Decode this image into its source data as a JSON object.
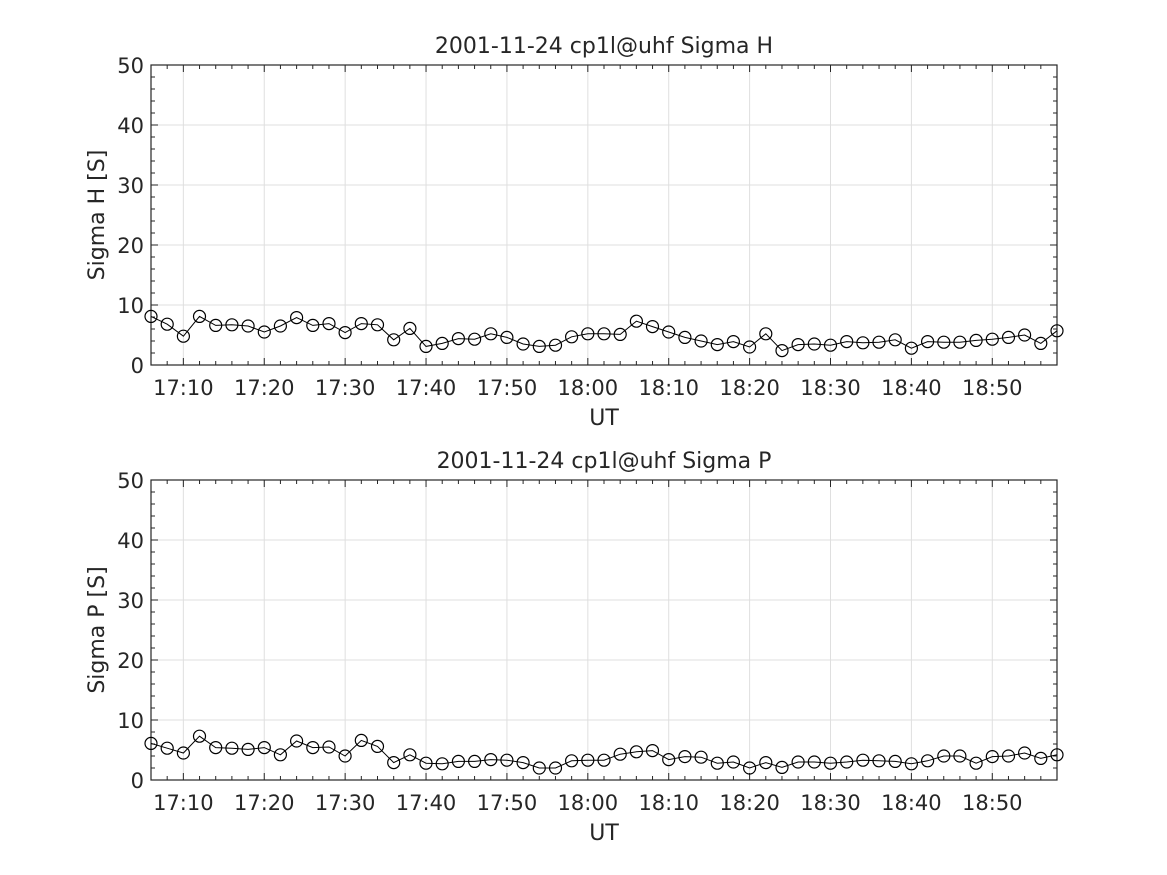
{
  "chart_data": [
    {
      "type": "line",
      "title": "2001-11-24  cp1l@uhf Sigma H",
      "xlabel": "UT",
      "ylabel": "Sigma H [S]",
      "xlim": [
        "17:06",
        "18:58"
      ],
      "ylim": [
        0,
        50
      ],
      "yticks": [
        "0",
        "10",
        "20",
        "30",
        "40",
        "50"
      ],
      "xticks": [
        "17:10",
        "17:20",
        "17:30",
        "17:40",
        "17:50",
        "18:00",
        "18:10",
        "18:20",
        "18:30",
        "18:40",
        "18:50"
      ],
      "grid": true,
      "marker": "circle",
      "series": [
        {
          "x": [
            "17:06",
            "17:08",
            "17:10",
            "17:12",
            "17:14",
            "17:16",
            "17:18",
            "17:20",
            "17:22",
            "17:24",
            "17:26",
            "17:28",
            "17:30",
            "17:32",
            "17:34",
            "17:36",
            "17:38",
            "17:40",
            "17:42",
            "17:44",
            "17:46",
            "17:48",
            "17:50",
            "17:52",
            "17:54",
            "17:56",
            "17:58",
            "18:00",
            "18:02",
            "18:04",
            "18:06",
            "18:08",
            "18:10",
            "18:12",
            "18:14",
            "18:16",
            "18:18",
            "18:20",
            "18:22",
            "18:24",
            "18:26",
            "18:28",
            "18:30",
            "18:32",
            "18:34",
            "18:36",
            "18:38",
            "18:40",
            "18:42",
            "18:44",
            "18:46",
            "18:48",
            "18:50",
            "18:52",
            "18:54",
            "18:56",
            "18:58"
          ],
          "values": [
            8.1,
            6.8,
            4.8,
            8.1,
            6.6,
            6.7,
            6.5,
            5.5,
            6.5,
            7.9,
            6.6,
            6.9,
            5.4,
            6.9,
            6.7,
            4.2,
            6.1,
            3.1,
            3.6,
            4.4,
            4.3,
            5.2,
            4.6,
            3.5,
            3.1,
            3.3,
            4.7,
            5.2,
            5.2,
            5.1,
            7.3,
            6.4,
            5.5,
            4.6,
            4.0,
            3.4,
            3.9,
            3.0,
            5.2,
            2.4,
            3.4,
            3.5,
            3.3,
            3.9,
            3.7,
            3.8,
            4.2,
            2.8,
            3.9,
            3.8,
            3.8,
            4.1,
            4.3,
            4.6,
            5.0,
            3.6,
            5.7
          ]
        }
      ]
    },
    {
      "type": "line",
      "title": "2001-11-24  cp1l@uhf Sigma P",
      "xlabel": "UT",
      "ylabel": "Sigma P [S]",
      "xlim": [
        "17:06",
        "18:58"
      ],
      "ylim": [
        0,
        50
      ],
      "yticks": [
        "0",
        "10",
        "20",
        "30",
        "40",
        "50"
      ],
      "xticks": [
        "17:10",
        "17:20",
        "17:30",
        "17:40",
        "17:50",
        "18:00",
        "18:10",
        "18:20",
        "18:30",
        "18:40",
        "18:50"
      ],
      "grid": true,
      "marker": "circle",
      "series": [
        {
          "x": [
            "17:06",
            "17:08",
            "17:10",
            "17:12",
            "17:14",
            "17:16",
            "17:18",
            "17:20",
            "17:22",
            "17:24",
            "17:26",
            "17:28",
            "17:30",
            "17:32",
            "17:34",
            "17:36",
            "17:38",
            "17:40",
            "17:42",
            "17:44",
            "17:46",
            "17:48",
            "17:50",
            "17:52",
            "17:54",
            "17:56",
            "17:58",
            "18:00",
            "18:02",
            "18:04",
            "18:06",
            "18:08",
            "18:10",
            "18:12",
            "18:14",
            "18:16",
            "18:18",
            "18:20",
            "18:22",
            "18:24",
            "18:26",
            "18:28",
            "18:30",
            "18:32",
            "18:34",
            "18:36",
            "18:38",
            "18:40",
            "18:42",
            "18:44",
            "18:46",
            "18:48",
            "18:50",
            "18:52",
            "18:54",
            "18:56",
            "18:58"
          ],
          "values": [
            6.1,
            5.3,
            4.5,
            7.3,
            5.4,
            5.3,
            5.1,
            5.4,
            4.2,
            6.5,
            5.4,
            5.5,
            4.0,
            6.6,
            5.6,
            2.9,
            4.2,
            2.8,
            2.7,
            3.1,
            3.1,
            3.4,
            3.3,
            2.9,
            2.0,
            2.0,
            3.2,
            3.3,
            3.3,
            4.3,
            4.7,
            4.9,
            3.4,
            3.9,
            3.8,
            2.8,
            3.0,
            2.0,
            2.9,
            2.1,
            3.0,
            3.0,
            2.8,
            3.0,
            3.3,
            3.2,
            3.1,
            2.7,
            3.2,
            4.0,
            4.0,
            2.8,
            3.9,
            4.0,
            4.5,
            3.6,
            4.2
          ]
        }
      ]
    }
  ]
}
